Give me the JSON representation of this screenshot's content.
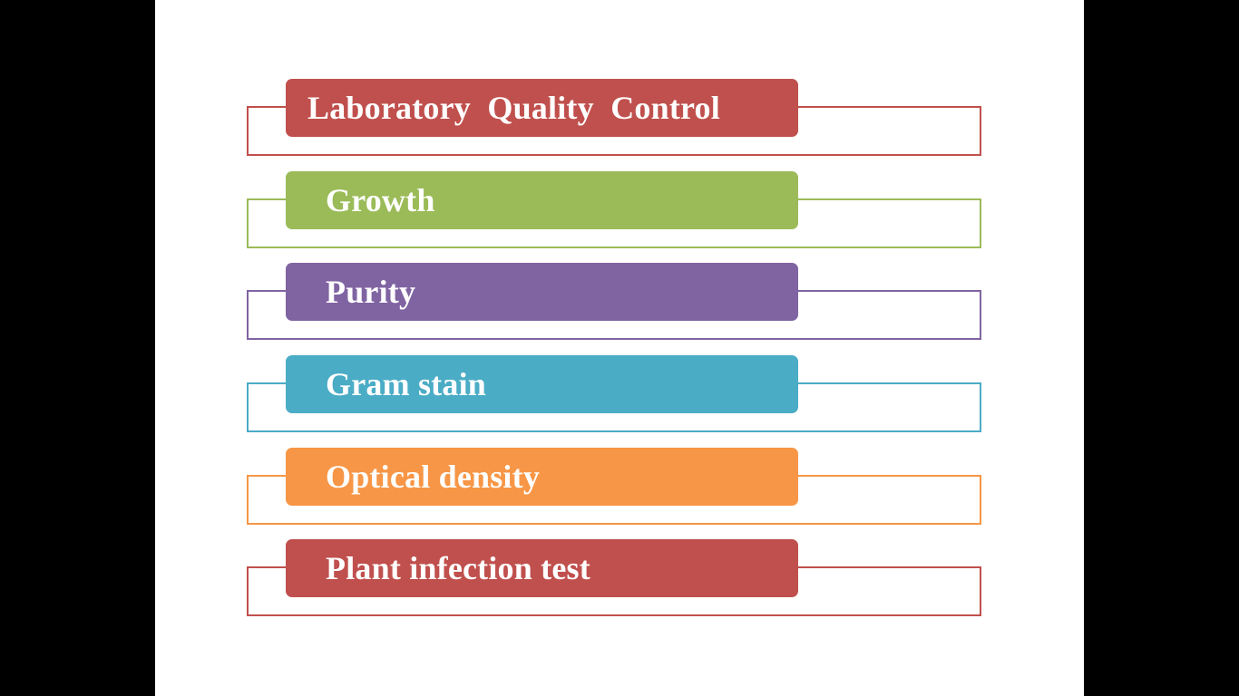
{
  "slide": {
    "items": [
      {
        "label": "Laboratory  Quality  Control",
        "color": "#c0504d"
      },
      {
        "label": "Growth",
        "color": "#9bbb59"
      },
      {
        "label": "Purity",
        "color": "#8064a2"
      },
      {
        "label": "Gram stain",
        "color": "#4bacc6"
      },
      {
        "label": "Optical density",
        "color": "#f79646"
      },
      {
        "label": "Plant infection test",
        "color": "#c0504d"
      }
    ]
  }
}
